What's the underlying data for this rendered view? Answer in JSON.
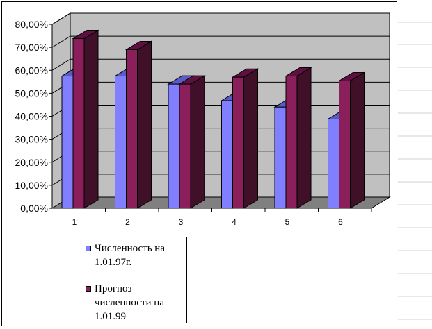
{
  "chart_data": {
    "type": "bar",
    "categories": [
      "1",
      "2",
      "3",
      "4",
      "5",
      "6"
    ],
    "series": [
      {
        "name": "Численность на 1.01.97г.",
        "values": [
          57.5,
          57.5,
          54.0,
          46.8,
          44.0,
          38.8
        ],
        "color": "#8080FF",
        "top_color": "#5A5AC8",
        "side_color": "#4848A8"
      },
      {
        "name": "Прогноз численности на 1.01.99",
        "values": [
          73.8,
          69.0,
          54.0,
          57.0,
          57.5,
          55.4
        ],
        "color": "#8A1F5C",
        "top_color": "#5E1040",
        "side_color": "#3F1028"
      }
    ],
    "y_ticks": [
      "0,00%",
      "10,00%",
      "20,00%",
      "30,00%",
      "40,00%",
      "50,00%",
      "60,00%",
      "70,00%",
      "80,00%"
    ],
    "ylim": [
      0,
      80
    ],
    "grid": true,
    "legend_position": "bottom-left",
    "wall_color": "#C0C0C0",
    "floor_color": "#808080"
  }
}
